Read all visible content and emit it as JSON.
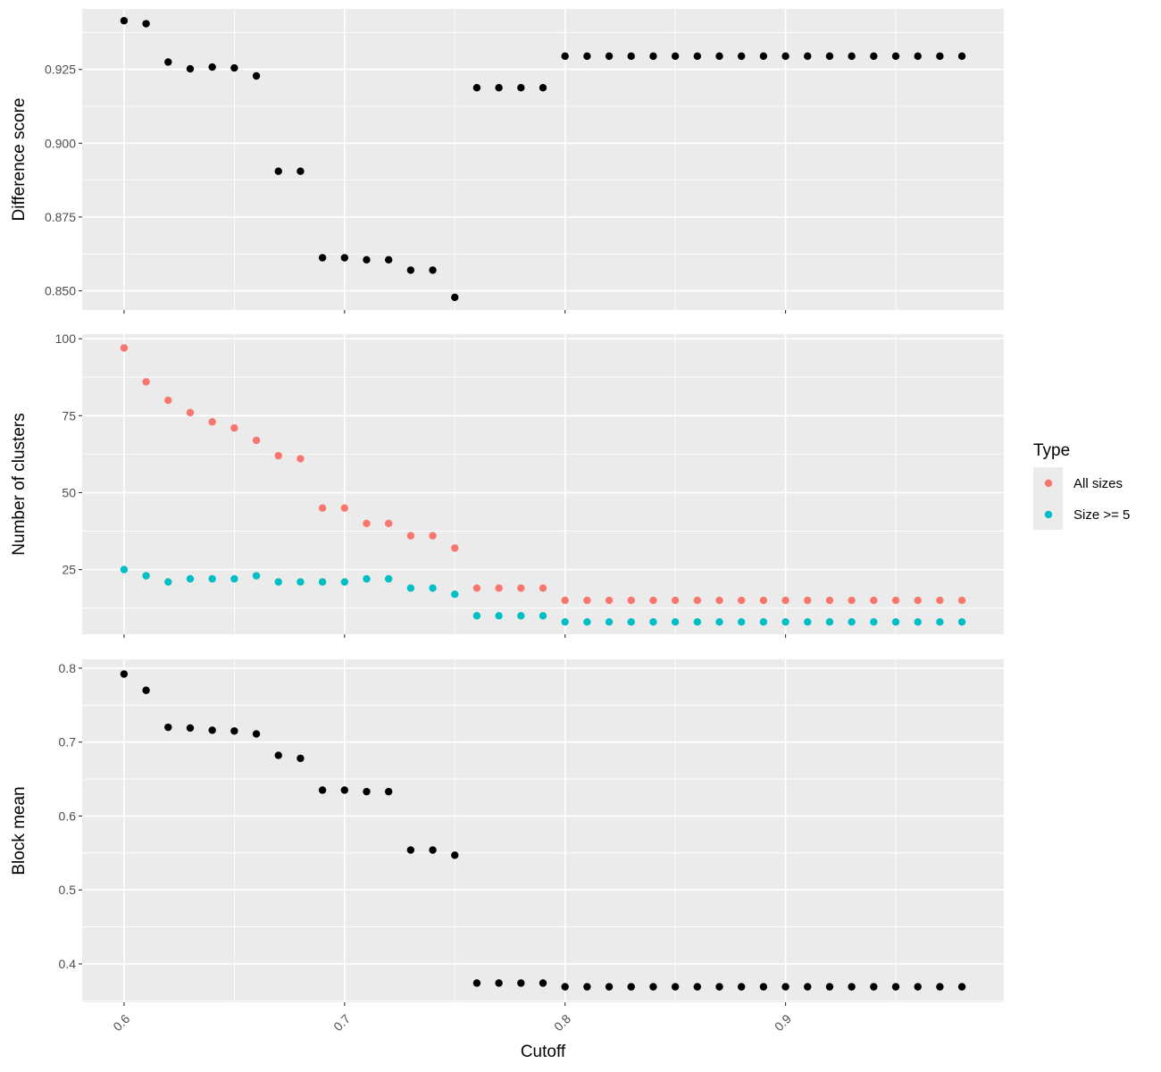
{
  "chart_data": {
    "type": "scatter",
    "xlabel": "Cutoff",
    "x": [
      0.6,
      0.61,
      0.62,
      0.63,
      0.64,
      0.65,
      0.66,
      0.67,
      0.68,
      0.69,
      0.7,
      0.71,
      0.72,
      0.73,
      0.74,
      0.75,
      0.76,
      0.77,
      0.78,
      0.79,
      0.8,
      0.81,
      0.82,
      0.83,
      0.84,
      0.85,
      0.86,
      0.87,
      0.88,
      0.89,
      0.9,
      0.91,
      0.92,
      0.93,
      0.94,
      0.95,
      0.96,
      0.97,
      0.98
    ],
    "xlim": [
      0.581,
      0.999
    ],
    "xticks": [
      0.6,
      0.7,
      0.8,
      0.9
    ],
    "xtick_labels": [
      "0.6",
      "0.7",
      "0.8",
      "0.9"
    ],
    "grid": true,
    "panels": [
      {
        "ylabel": "Difference score",
        "ylim": [
          0.8435,
          0.9455
        ],
        "yticks": [
          0.85,
          0.875,
          0.9,
          0.925
        ],
        "ytick_labels": [
          "0.850",
          "0.875",
          "0.900",
          "0.925"
        ],
        "series": [
          {
            "color": "#000000",
            "values": [
              0.9415,
              0.9405,
              0.9275,
              0.9252,
              0.9258,
              0.9255,
              0.9228,
              0.8905,
              0.8905,
              0.8612,
              0.8612,
              0.8605,
              0.8605,
              0.857,
              0.857,
              0.8478,
              0.9188,
              0.9188,
              0.9188,
              0.9188,
              0.9295,
              0.9295,
              0.9295,
              0.9295,
              0.9295,
              0.9295,
              0.9295,
              0.9295,
              0.9295,
              0.9295,
              0.9295,
              0.9295,
              0.9295,
              0.9295,
              0.9295,
              0.9295,
              0.9295,
              0.9295,
              0.9295
            ]
          }
        ]
      },
      {
        "ylabel": "Number of clusters",
        "ylim": [
          4,
          101.5
        ],
        "yticks": [
          25,
          50,
          75,
          100
        ],
        "ytick_labels": [
          "25",
          "50",
          "75",
          "100"
        ],
        "series": [
          {
            "name": "All sizes",
            "color": "#F8766D",
            "values": [
              97,
              86,
              80,
              76,
              73,
              71,
              67,
              62,
              61,
              45,
              45,
              40,
              40,
              36,
              36,
              32,
              19,
              19,
              19,
              19,
              15,
              15,
              15,
              15,
              15,
              15,
              15,
              15,
              15,
              15,
              15,
              15,
              15,
              15,
              15,
              15,
              15,
              15,
              15
            ]
          },
          {
            "name": "Size >= 5",
            "color": "#00BFC4",
            "values": [
              25,
              23,
              21,
              22,
              22,
              22,
              23,
              21,
              21,
              21,
              21,
              22,
              22,
              19,
              19,
              17,
              10,
              10,
              10,
              10,
              8,
              8,
              8,
              8,
              8,
              8,
              8,
              8,
              8,
              8,
              8,
              8,
              8,
              8,
              8,
              8,
              8,
              8,
              8
            ]
          }
        ]
      },
      {
        "ylabel": "Block mean",
        "ylim": [
          0.348,
          0.812
        ],
        "yticks": [
          0.4,
          0.5,
          0.6,
          0.7,
          0.8
        ],
        "ytick_labels": [
          "0.4",
          "0.5",
          "0.6",
          "0.7",
          "0.8"
        ],
        "series": [
          {
            "color": "#000000",
            "values": [
              0.792,
              0.77,
              0.72,
              0.719,
              0.716,
              0.715,
              0.711,
              0.682,
              0.678,
              0.635,
              0.635,
              0.633,
              0.633,
              0.554,
              0.554,
              0.547,
              0.374,
              0.374,
              0.374,
              0.374,
              0.369,
              0.369,
              0.369,
              0.369,
              0.369,
              0.369,
              0.369,
              0.369,
              0.369,
              0.369,
              0.369,
              0.369,
              0.369,
              0.369,
              0.369,
              0.369,
              0.369,
              0.369,
              0.369
            ]
          }
        ]
      }
    ],
    "legend": {
      "title": "Type",
      "placement": "right",
      "items": [
        {
          "label": "All sizes",
          "color": "#F8766D"
        },
        {
          "label": "Size >= 5",
          "color": "#00BFC4"
        }
      ]
    }
  }
}
